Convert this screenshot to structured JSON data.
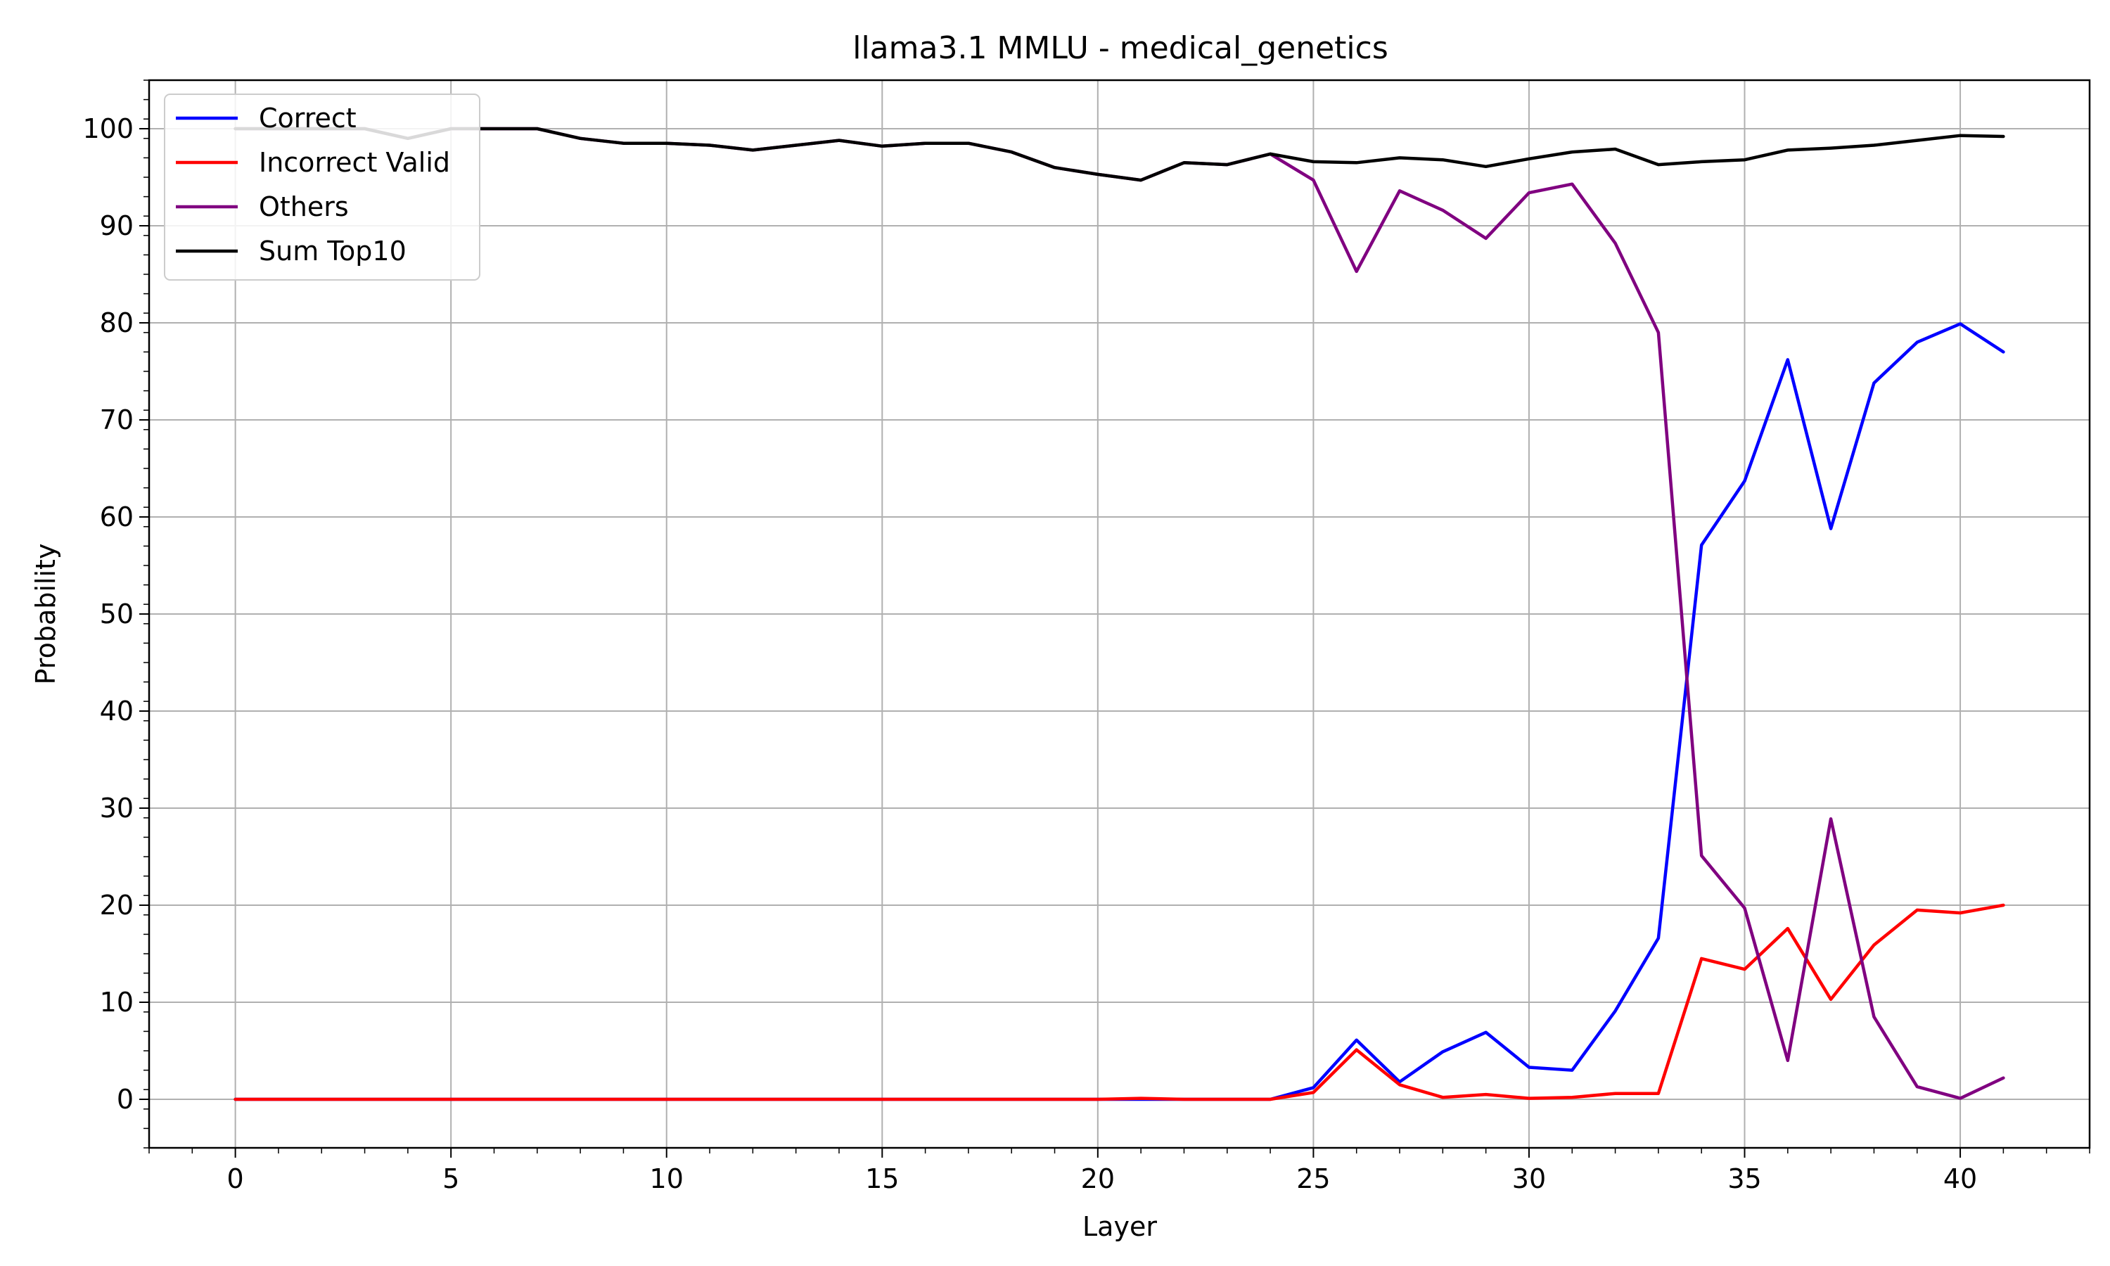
{
  "chart_data": {
    "type": "line",
    "title": "llama3.1 MMLU - medical_genetics",
    "xlabel": "Layer",
    "ylabel": "Probability",
    "xlim": [
      -2,
      43
    ],
    "ylim": [
      -5,
      105
    ],
    "x_ticks": [
      0,
      5,
      10,
      15,
      20,
      25,
      30,
      35,
      40
    ],
    "y_ticks": [
      0,
      10,
      20,
      30,
      40,
      50,
      60,
      70,
      80,
      90,
      100
    ],
    "grid": true,
    "legend_position": "top-left",
    "x": [
      0,
      1,
      2,
      3,
      4,
      5,
      6,
      7,
      8,
      9,
      10,
      11,
      12,
      13,
      14,
      15,
      16,
      17,
      18,
      19,
      20,
      21,
      22,
      23,
      24,
      25,
      26,
      27,
      28,
      29,
      30,
      31,
      32,
      33,
      34,
      35,
      36,
      37,
      38,
      39,
      40,
      41
    ],
    "series": [
      {
        "name": "Correct",
        "color": "#0000ff",
        "values": [
          0,
          0,
          0,
          0,
          0,
          0,
          0,
          0,
          0,
          0,
          0,
          0,
          0,
          0,
          0,
          0,
          0,
          0,
          0,
          0,
          0,
          0,
          0,
          0,
          0,
          1.2,
          6.1,
          1.8,
          4.9,
          6.9,
          3.3,
          3.0,
          9.1,
          16.6,
          57.1,
          63.7,
          76.2,
          58.8,
          73.8,
          78.0,
          79.9,
          77.0
        ]
      },
      {
        "name": "Incorrect Valid",
        "color": "#ff0000",
        "values": [
          0,
          0,
          0,
          0,
          0,
          0,
          0,
          0,
          0,
          0,
          0,
          0,
          0,
          0,
          0,
          0,
          0,
          0,
          0,
          0,
          0,
          0.1,
          0,
          0,
          0,
          0.7,
          5.1,
          1.5,
          0.2,
          0.5,
          0.1,
          0.2,
          0.6,
          0.6,
          14.5,
          13.4,
          17.6,
          10.3,
          15.9,
          19.5,
          19.2,
          20.0
        ]
      },
      {
        "name": "Others",
        "color": "#800080",
        "values": [
          100,
          100,
          100,
          100,
          99,
          100,
          100,
          100,
          99,
          98.5,
          98.5,
          98.3,
          97.8,
          98.3,
          98.8,
          98.2,
          98.5,
          98.5,
          97.6,
          96,
          95.3,
          94.7,
          96.5,
          96.3,
          97.4,
          94.7,
          85.3,
          93.6,
          91.6,
          88.7,
          93.4,
          94.3,
          88.2,
          79.0,
          25.1,
          19.7,
          4.0,
          28.9,
          8.5,
          1.3,
          0.1,
          2.2
        ]
      },
      {
        "name": "Sum Top10",
        "color": "#000000",
        "values": [
          100,
          100,
          100,
          100,
          99,
          100,
          100,
          100,
          99,
          98.5,
          98.5,
          98.3,
          97.8,
          98.3,
          98.8,
          98.2,
          98.5,
          98.5,
          97.6,
          96,
          95.3,
          94.7,
          96.5,
          96.3,
          97.4,
          96.6,
          96.5,
          97.0,
          96.8,
          96.1,
          96.9,
          97.6,
          97.9,
          96.3,
          96.6,
          96.8,
          97.8,
          98.0,
          98.3,
          98.8,
          99.3,
          99.2
        ]
      }
    ]
  }
}
